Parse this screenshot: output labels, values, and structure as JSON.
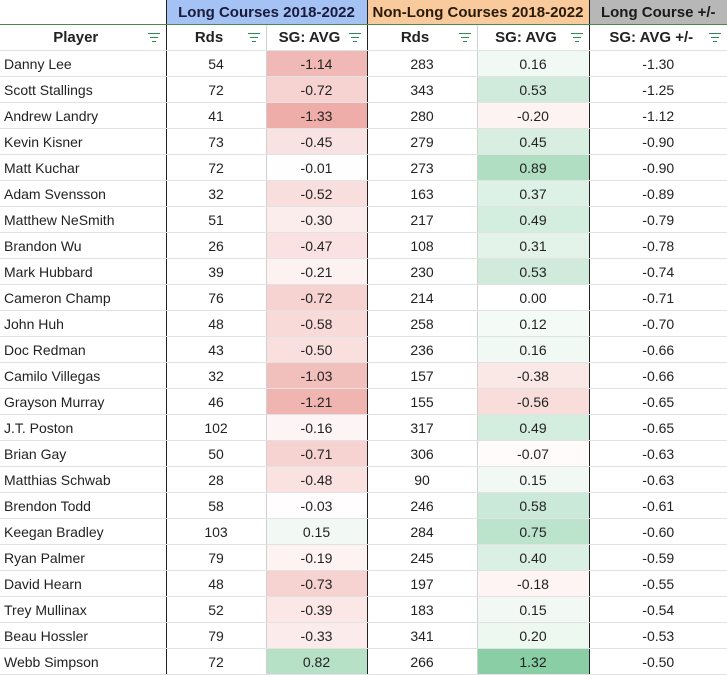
{
  "group_headers": {
    "long": "Long Courses 2018-2022",
    "non_long": "Non-Long Courses 2018-2022",
    "plusminus": "Long Course +/-"
  },
  "columns": {
    "player": "Player",
    "long_rds": "Rds",
    "long_sg": "SG: AVG",
    "non_rds": "Rds",
    "non_sg": "SG: AVG",
    "diff": "SG: AVG +/-"
  },
  "icons": {
    "filter": "filter-icon"
  },
  "colors": {
    "long_header": "#a4c2f4",
    "non_long_header": "#f9cb9c",
    "pm_header": "#b7b7b7",
    "negative": "#e67c73",
    "positive": "#57bb8a"
  },
  "rows": [
    {
      "player": "Danny Lee",
      "long_rds": "54",
      "long_sg": "-1.14",
      "non_rds": "283",
      "non_sg": "0.16",
      "diff": "-1.30"
    },
    {
      "player": "Scott Stallings",
      "long_rds": "72",
      "long_sg": "-0.72",
      "non_rds": "343",
      "non_sg": "0.53",
      "diff": "-1.25"
    },
    {
      "player": "Andrew Landry",
      "long_rds": "41",
      "long_sg": "-1.33",
      "non_rds": "280",
      "non_sg": "-0.20",
      "diff": "-1.12"
    },
    {
      "player": "Kevin Kisner",
      "long_rds": "73",
      "long_sg": "-0.45",
      "non_rds": "279",
      "non_sg": "0.45",
      "diff": "-0.90"
    },
    {
      "player": "Matt Kuchar",
      "long_rds": "72",
      "long_sg": "-0.01",
      "non_rds": "273",
      "non_sg": "0.89",
      "diff": "-0.90"
    },
    {
      "player": "Adam Svensson",
      "long_rds": "32",
      "long_sg": "-0.52",
      "non_rds": "163",
      "non_sg": "0.37",
      "diff": "-0.89"
    },
    {
      "player": "Matthew NeSmith",
      "long_rds": "51",
      "long_sg": "-0.30",
      "non_rds": "217",
      "non_sg": "0.49",
      "diff": "-0.79"
    },
    {
      "player": "Brandon Wu",
      "long_rds": "26",
      "long_sg": "-0.47",
      "non_rds": "108",
      "non_sg": "0.31",
      "diff": "-0.78"
    },
    {
      "player": "Mark Hubbard",
      "long_rds": "39",
      "long_sg": "-0.21",
      "non_rds": "230",
      "non_sg": "0.53",
      "diff": "-0.74"
    },
    {
      "player": "Cameron Champ",
      "long_rds": "76",
      "long_sg": "-0.72",
      "non_rds": "214",
      "non_sg": "0.00",
      "diff": "-0.71"
    },
    {
      "player": "John Huh",
      "long_rds": "48",
      "long_sg": "-0.58",
      "non_rds": "258",
      "non_sg": "0.12",
      "diff": "-0.70"
    },
    {
      "player": "Doc Redman",
      "long_rds": "43",
      "long_sg": "-0.50",
      "non_rds": "236",
      "non_sg": "0.16",
      "diff": "-0.66"
    },
    {
      "player": "Camilo Villegas",
      "long_rds": "32",
      "long_sg": "-1.03",
      "non_rds": "157",
      "non_sg": "-0.38",
      "diff": "-0.66"
    },
    {
      "player": "Grayson Murray",
      "long_rds": "46",
      "long_sg": "-1.21",
      "non_rds": "155",
      "non_sg": "-0.56",
      "diff": "-0.65"
    },
    {
      "player": "J.T. Poston",
      "long_rds": "102",
      "long_sg": "-0.16",
      "non_rds": "317",
      "non_sg": "0.49",
      "diff": "-0.65"
    },
    {
      "player": "Brian Gay",
      "long_rds": "50",
      "long_sg": "-0.71",
      "non_rds": "306",
      "non_sg": "-0.07",
      "diff": "-0.63"
    },
    {
      "player": "Matthias Schwab",
      "long_rds": "28",
      "long_sg": "-0.48",
      "non_rds": "90",
      "non_sg": "0.15",
      "diff": "-0.63"
    },
    {
      "player": "Brendon Todd",
      "long_rds": "58",
      "long_sg": "-0.03",
      "non_rds": "246",
      "non_sg": "0.58",
      "diff": "-0.61"
    },
    {
      "player": "Keegan Bradley",
      "long_rds": "103",
      "long_sg": "0.15",
      "non_rds": "284",
      "non_sg": "0.75",
      "diff": "-0.60"
    },
    {
      "player": "Ryan Palmer",
      "long_rds": "79",
      "long_sg": "-0.19",
      "non_rds": "245",
      "non_sg": "0.40",
      "diff": "-0.59"
    },
    {
      "player": "David Hearn",
      "long_rds": "48",
      "long_sg": "-0.73",
      "non_rds": "197",
      "non_sg": "-0.18",
      "diff": "-0.55"
    },
    {
      "player": "Trey Mullinax",
      "long_rds": "52",
      "long_sg": "-0.39",
      "non_rds": "183",
      "non_sg": "0.15",
      "diff": "-0.54"
    },
    {
      "player": "Beau Hossler",
      "long_rds": "79",
      "long_sg": "-0.33",
      "non_rds": "341",
      "non_sg": "0.20",
      "diff": "-0.53"
    },
    {
      "player": "Webb Simpson",
      "long_rds": "72",
      "long_sg": "0.82",
      "non_rds": "266",
      "non_sg": "1.32",
      "diff": "-0.50"
    }
  ]
}
